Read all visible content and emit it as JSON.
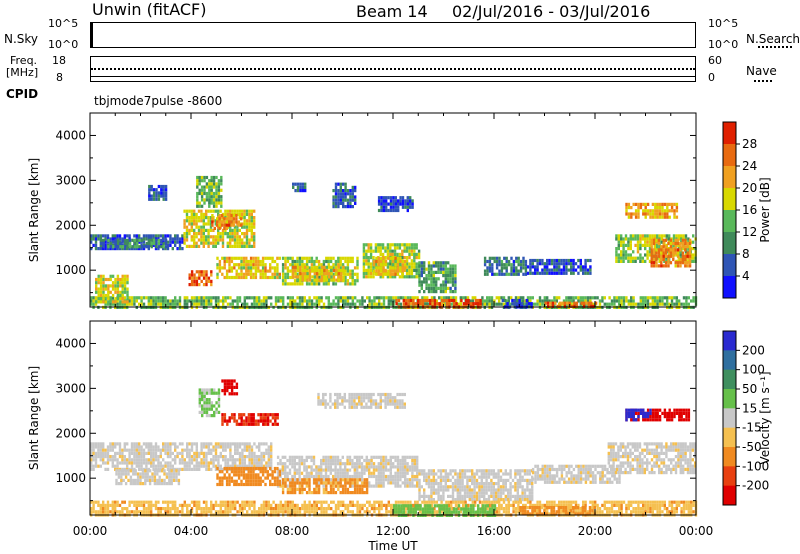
{
  "header": {
    "station": "Unwin (fitACF)",
    "beam": "Beam 14",
    "date_range": "02/Jul/2016 - 03/Jul/2016"
  },
  "top_panels": {
    "nsky_label": "N.Sky",
    "nsky_ticks": [
      "10^5",
      "10^0"
    ],
    "nsearch_label": "N.Search",
    "nsearch_ticks": [
      "10^5",
      "10^0"
    ],
    "freq_label_line1": "Freq.",
    "freq_label_line2": "[MHz]",
    "freq_ticks": [
      "18",
      "8"
    ],
    "nave_label": "Nave",
    "nave_ticks": [
      "60",
      "0"
    ],
    "cpid_label": "CPID",
    "cpid_text": "tbjmode7pulse -8600"
  },
  "chart_data": [
    {
      "type": "heatmap",
      "name": "power",
      "ylabel": "Slant Range [km]",
      "ylim": [
        180,
        4500
      ],
      "yticks": [
        "1000",
        "2000",
        "3000",
        "4000"
      ],
      "colorbar_label": "Power [dB]",
      "colorbar_ticks": [
        "4",
        "8",
        "12",
        "16",
        "20",
        "24",
        "28"
      ],
      "colorbar_colors": [
        "#1010ff",
        "#2f55b5",
        "#3f8a5a",
        "#59b85a",
        "#d8d800",
        "#f0a020",
        "#e86a10",
        "#e02000"
      ],
      "regions": [
        {
          "t0": 0.0,
          "t1": 3.7,
          "r0": 1450,
          "r1": 1800,
          "level": 6
        },
        {
          "t0": 0.4,
          "t1": 3.0,
          "r0": 1550,
          "r1": 1700,
          "level": 10
        },
        {
          "t0": 3.7,
          "t1": 6.5,
          "r0": 1500,
          "r1": 2350,
          "level": 18
        },
        {
          "t0": 4.8,
          "t1": 6.0,
          "r0": 1900,
          "r1": 2250,
          "level": 24
        },
        {
          "t0": 5.0,
          "t1": 7.5,
          "r0": 850,
          "r1": 1300,
          "level": 20
        },
        {
          "t0": 3.9,
          "t1": 4.8,
          "r0": 700,
          "r1": 1000,
          "level": 26
        },
        {
          "t0": 7.6,
          "t1": 10.6,
          "r0": 700,
          "r1": 1300,
          "level": 16
        },
        {
          "t0": 8.0,
          "t1": 10.0,
          "r0": 800,
          "r1": 1100,
          "level": 20
        },
        {
          "t0": 10.8,
          "t1": 13.0,
          "r0": 850,
          "r1": 1600,
          "level": 16
        },
        {
          "t0": 11.2,
          "t1": 12.5,
          "r0": 900,
          "r1": 1300,
          "level": 20
        },
        {
          "t0": 13.0,
          "t1": 14.5,
          "r0": 500,
          "r1": 1200,
          "level": 12
        },
        {
          "t0": 15.6,
          "t1": 17.3,
          "r0": 900,
          "r1": 1300,
          "level": 8
        },
        {
          "t0": 17.3,
          "t1": 19.8,
          "r0": 950,
          "r1": 1250,
          "level": 6
        },
        {
          "t0": 20.8,
          "t1": 24.0,
          "r0": 1200,
          "r1": 1800,
          "level": 16
        },
        {
          "t0": 21.2,
          "t1": 23.2,
          "r0": 2200,
          "r1": 2500,
          "level": 22
        },
        {
          "t0": 22.2,
          "t1": 23.8,
          "r0": 1100,
          "r1": 1700,
          "level": 24
        },
        {
          "t0": 0.0,
          "t1": 24.0,
          "r0": 200,
          "r1": 420,
          "level": 14
        },
        {
          "t0": 12.0,
          "t1": 15.5,
          "r0": 200,
          "r1": 360,
          "level": 28
        },
        {
          "t0": 16.3,
          "t1": 17.5,
          "r0": 200,
          "r1": 360,
          "level": 5
        },
        {
          "t0": 18.0,
          "t1": 20.0,
          "r0": 200,
          "r1": 300,
          "level": 26
        },
        {
          "t0": 0.2,
          "t1": 1.5,
          "r0": 300,
          "r1": 900,
          "level": 18
        },
        {
          "t0": 4.2,
          "t1": 5.2,
          "r0": 2400,
          "r1": 3100,
          "level": 14
        },
        {
          "t0": 2.3,
          "t1": 3.0,
          "r0": 2600,
          "r1": 2900,
          "level": 6
        },
        {
          "t0": 9.6,
          "t1": 10.5,
          "r0": 2400,
          "r1": 2950,
          "level": 6
        },
        {
          "t0": 11.4,
          "t1": 12.8,
          "r0": 2350,
          "r1": 2650,
          "level": 5
        },
        {
          "t0": 8.0,
          "t1": 8.5,
          "r0": 2800,
          "r1": 2950,
          "level": 7
        }
      ]
    },
    {
      "type": "heatmap",
      "name": "velocity",
      "ylabel": "Slant Range [km]",
      "ylim": [
        180,
        4500
      ],
      "yticks": [
        "1000",
        "2000",
        "3000",
        "4000"
      ],
      "xlabel": "Time UT",
      "xticks": [
        "00:00",
        "04:00",
        "08:00",
        "12:00",
        "16:00",
        "20:00",
        "00:00"
      ],
      "colorbar_label": "Velocity [m s⁻¹]",
      "colorbar_ticks": [
        "200",
        "100",
        "50",
        "15",
        "-15",
        "-50",
        "-100",
        "-200"
      ],
      "colorbar_colors": [
        "#2a2ad0",
        "#2f6f9f",
        "#3f8f5f",
        "#66c04a",
        "#c8c8c8",
        "#f5c050",
        "#f08a20",
        "#e84010",
        "#e00000"
      ],
      "regions": [
        {
          "t0": 0.0,
          "t1": 7.2,
          "r0": 1200,
          "r1": 1800,
          "level": -5
        },
        {
          "t0": 7.4,
          "t1": 13.0,
          "r0": 800,
          "r1": 1500,
          "level": -5
        },
        {
          "t0": 13.0,
          "t1": 17.5,
          "r0": 500,
          "r1": 1200,
          "level": -5
        },
        {
          "t0": 17.5,
          "t1": 21.0,
          "r0": 900,
          "r1": 1300,
          "level": -5
        },
        {
          "t0": 20.5,
          "t1": 24.0,
          "r0": 1100,
          "r1": 1800,
          "level": -5
        },
        {
          "t0": 5.0,
          "t1": 7.5,
          "r0": 850,
          "r1": 1250,
          "level": -70
        },
        {
          "t0": 7.6,
          "t1": 11.0,
          "r0": 700,
          "r1": 1000,
          "level": -60
        },
        {
          "t0": 1.0,
          "t1": 3.5,
          "r0": 900,
          "r1": 1200,
          "level": -5
        },
        {
          "t0": 0.0,
          "t1": 24.0,
          "r0": 200,
          "r1": 500,
          "level": -40
        },
        {
          "t0": 12.0,
          "t1": 16.0,
          "r0": 200,
          "r1": 420,
          "level": 30
        },
        {
          "t0": 17.0,
          "t1": 20.0,
          "r0": 200,
          "r1": 380,
          "level": -60
        },
        {
          "t0": 21.2,
          "t1": 23.7,
          "r0": 2300,
          "r1": 2550,
          "level": -250
        },
        {
          "t0": 21.2,
          "t1": 22.2,
          "r0": 2300,
          "r1": 2550,
          "level": 250
        },
        {
          "t0": 5.2,
          "t1": 7.4,
          "r0": 2200,
          "r1": 2450,
          "level": -200
        },
        {
          "t0": 5.2,
          "t1": 5.8,
          "r0": 2900,
          "r1": 3200,
          "level": -250
        },
        {
          "t0": 4.3,
          "t1": 5.1,
          "r0": 2400,
          "r1": 3000,
          "level": 20
        },
        {
          "t0": 9.0,
          "t1": 12.5,
          "r0": 2550,
          "r1": 2900,
          "level": -5
        }
      ]
    }
  ]
}
